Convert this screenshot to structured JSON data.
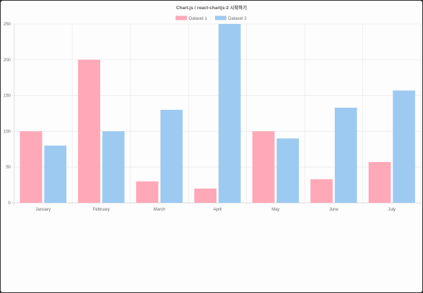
{
  "chart_data": {
    "type": "bar",
    "title": "Chart.js / react-chartjs-2 시작하기",
    "categories": [
      "January",
      "February",
      "March",
      "April",
      "May",
      "June",
      "July"
    ],
    "series": [
      {
        "name": "Dataset 1",
        "color": "#ffa8b8",
        "values": [
          100,
          200,
          30,
          20,
          100,
          33,
          57
        ]
      },
      {
        "name": "Dataset 2",
        "color": "#9dcaf1",
        "values": [
          80,
          100,
          130,
          250,
          90,
          133,
          157
        ]
      }
    ],
    "ylim": [
      0,
      250
    ],
    "yticks": [
      0,
      50,
      100,
      150,
      200,
      250
    ],
    "grid": true,
    "legend_position": "top-center",
    "xlabel": "",
    "ylabel": ""
  }
}
